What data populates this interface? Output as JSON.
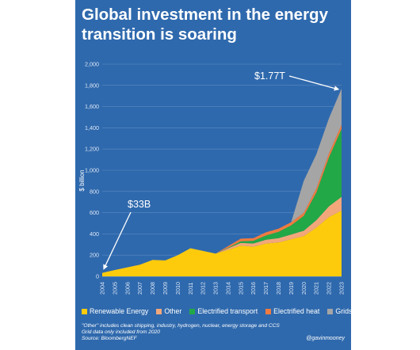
{
  "title": "Global investment in the energy transition is soaring",
  "handle": "@gavinmooney",
  "notes": [
    "\"Other\" includes clean shipping, industry, hydrogen, nuclear, energy storage and CCS",
    "Grid data only included from 2020",
    "Source: BloombergNEF"
  ],
  "chart_data": {
    "type": "area",
    "stacked": true,
    "ylabel": "$ billion",
    "ylim": [
      0,
      2000
    ],
    "yticks": [
      "0",
      "200",
      "400",
      "600",
      "800",
      "1,000",
      "1,200",
      "1,400",
      "1,600",
      "1,800",
      "2,000"
    ],
    "x": [
      "2004",
      "2005",
      "2006",
      "2007",
      "2008",
      "2009",
      "2010",
      "2011",
      "2012",
      "2013",
      "2014",
      "2015",
      "2016",
      "2017",
      "2018",
      "2019",
      "2020",
      "2021",
      "2022",
      "2023"
    ],
    "series": [
      {
        "name": "Renewable Energy",
        "color": "#fdcb0c",
        "values": [
          33,
          60,
          85,
          110,
          155,
          150,
          200,
          265,
          240,
          215,
          250,
          290,
          280,
          310,
          320,
          350,
          380,
          460,
          560,
          620
        ]
      },
      {
        "name": "Other",
        "color": "#f2a77a",
        "values": [
          0,
          0,
          0,
          0,
          0,
          0,
          0,
          0,
          0,
          0,
          15,
          25,
          30,
          35,
          40,
          45,
          50,
          70,
          100,
          130
        ]
      },
      {
        "name": "Electrified transport",
        "color": "#22a846",
        "values": [
          0,
          0,
          0,
          0,
          0,
          0,
          0,
          0,
          0,
          0,
          5,
          15,
          25,
          40,
          60,
          85,
          140,
          260,
          460,
          640
        ]
      },
      {
        "name": "Electrified heat",
        "color": "#ef7b3f",
        "values": [
          0,
          0,
          0,
          0,
          0,
          0,
          0,
          0,
          0,
          0,
          15,
          25,
          25,
          30,
          30,
          30,
          30,
          40,
          40,
          40
        ]
      },
      {
        "name": "Grids",
        "color": "#a5a5a5",
        "values": [
          0,
          0,
          0,
          0,
          0,
          0,
          0,
          0,
          0,
          0,
          0,
          0,
          0,
          0,
          0,
          0,
          300,
          320,
          330,
          340
        ]
      }
    ],
    "annotations": [
      {
        "text": "$33B",
        "x": "2004",
        "y": 33
      },
      {
        "text": "$1.77T",
        "x": "2023",
        "y": 1770
      }
    ]
  }
}
